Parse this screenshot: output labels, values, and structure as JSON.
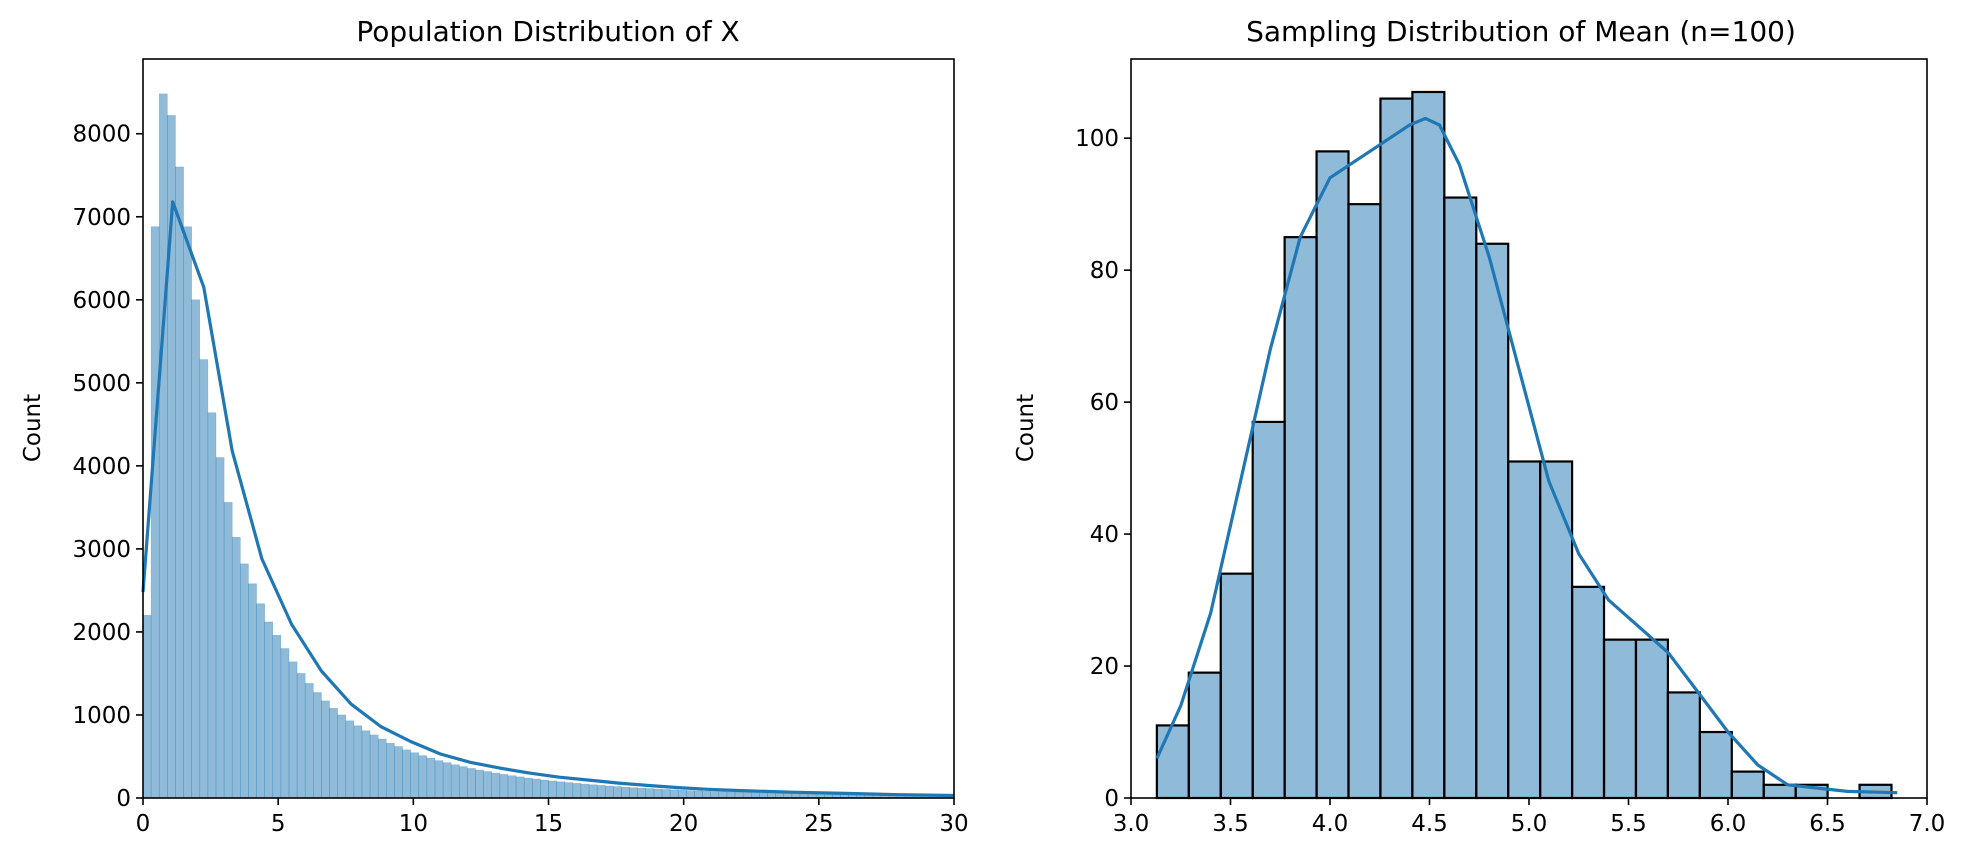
{
  "chart_data": [
    {
      "type": "bar",
      "title": "Population Distribution of X",
      "xlabel": "",
      "ylabel": "Count",
      "xlim": [
        0,
        30
      ],
      "ylim": [
        0,
        8900
      ],
      "xticks": [
        0,
        5,
        10,
        15,
        20,
        25,
        30
      ],
      "yticks": [
        0,
        1000,
        2000,
        3000,
        4000,
        5000,
        6000,
        7000,
        8000
      ],
      "bin_start": 0,
      "bin_width": 0.3,
      "bar_color": "#1f77b4",
      "bar_fill_opacity": 0.5,
      "bar_edge": "none",
      "values": [
        2200,
        6880,
        8480,
        8220,
        7600,
        6880,
        6000,
        5280,
        4640,
        4100,
        3560,
        3140,
        2820,
        2580,
        2340,
        2120,
        1960,
        1800,
        1640,
        1500,
        1380,
        1270,
        1170,
        1080,
        1000,
        930,
        870,
        810,
        760,
        710,
        660,
        620,
        580,
        545,
        510,
        480,
        450,
        425,
        400,
        378,
        356,
        336,
        318,
        300,
        284,
        268,
        254,
        240,
        228,
        216,
        205,
        195,
        185,
        176,
        167,
        159,
        151,
        144,
        137,
        130,
        124,
        118,
        113,
        108,
        103,
        98,
        94,
        90,
        86,
        82,
        79,
        76,
        73,
        70,
        67,
        64,
        61,
        59,
        56,
        54,
        52,
        50,
        48,
        46,
        44,
        42,
        40,
        38,
        36,
        34,
        32,
        30,
        29,
        28,
        27,
        26,
        25,
        24,
        23,
        22
      ],
      "kde": {
        "color": "#1f77b4",
        "x": [
          0,
          1.1,
          2.25,
          3.3,
          4.4,
          5.5,
          6.6,
          7.7,
          8.8,
          9.9,
          11,
          12.1,
          13.2,
          14.3,
          15.4,
          16.5,
          17.6,
          18.7,
          19.8,
          20.9,
          22,
          24,
          26,
          28,
          30
        ],
        "y": [
          2480,
          7180,
          6150,
          4180,
          2880,
          2090,
          1530,
          1130,
          860,
          680,
          530,
          430,
          360,
          300,
          250,
          215,
          180,
          150,
          125,
          105,
          90,
          70,
          55,
          40,
          30
        ]
      }
    },
    {
      "type": "bar",
      "title": "Sampling Distribution of Mean (n=100)",
      "xlabel": "",
      "ylabel": "Count",
      "xlim": [
        3.0,
        7.0
      ],
      "ylim": [
        0,
        112
      ],
      "xticks": [
        3.0,
        3.5,
        4.0,
        4.5,
        5.0,
        5.5,
        6.0,
        6.5,
        7.0
      ],
      "xtick_labels": [
        "3.0",
        "3.5",
        "4.0",
        "4.5",
        "5.0",
        "5.5",
        "6.0",
        "6.5",
        "7.0"
      ],
      "yticks": [
        0,
        20,
        40,
        60,
        80,
        100
      ],
      "bin_start": 3.13,
      "bin_width": 0.1605,
      "bar_color": "#1f77b4",
      "bar_fill_opacity": 0.5,
      "bar_edge": "#000000",
      "values": [
        11,
        19,
        34,
        57,
        85,
        98,
        90,
        106,
        107,
        91,
        84,
        51,
        51,
        32,
        24,
        24,
        16,
        10,
        4,
        2,
        2,
        0,
        2
      ],
      "kde": {
        "color": "#1f77b4",
        "x": [
          3.13,
          3.25,
          3.4,
          3.55,
          3.7,
          3.85,
          4.0,
          4.1,
          4.2,
          4.3,
          4.4,
          4.48,
          4.55,
          4.65,
          4.8,
          4.95,
          5.1,
          5.25,
          5.4,
          5.55,
          5.7,
          5.85,
          6.0,
          6.15,
          6.3,
          6.45,
          6.6,
          6.85
        ],
        "y": [
          6,
          14,
          28,
          48,
          68,
          85,
          94,
          96,
          98,
          100,
          102,
          103,
          102,
          96,
          82,
          65,
          48,
          37,
          30,
          26,
          22,
          16,
          10,
          5,
          2,
          1.5,
          1,
          0.8
        ]
      }
    }
  ]
}
